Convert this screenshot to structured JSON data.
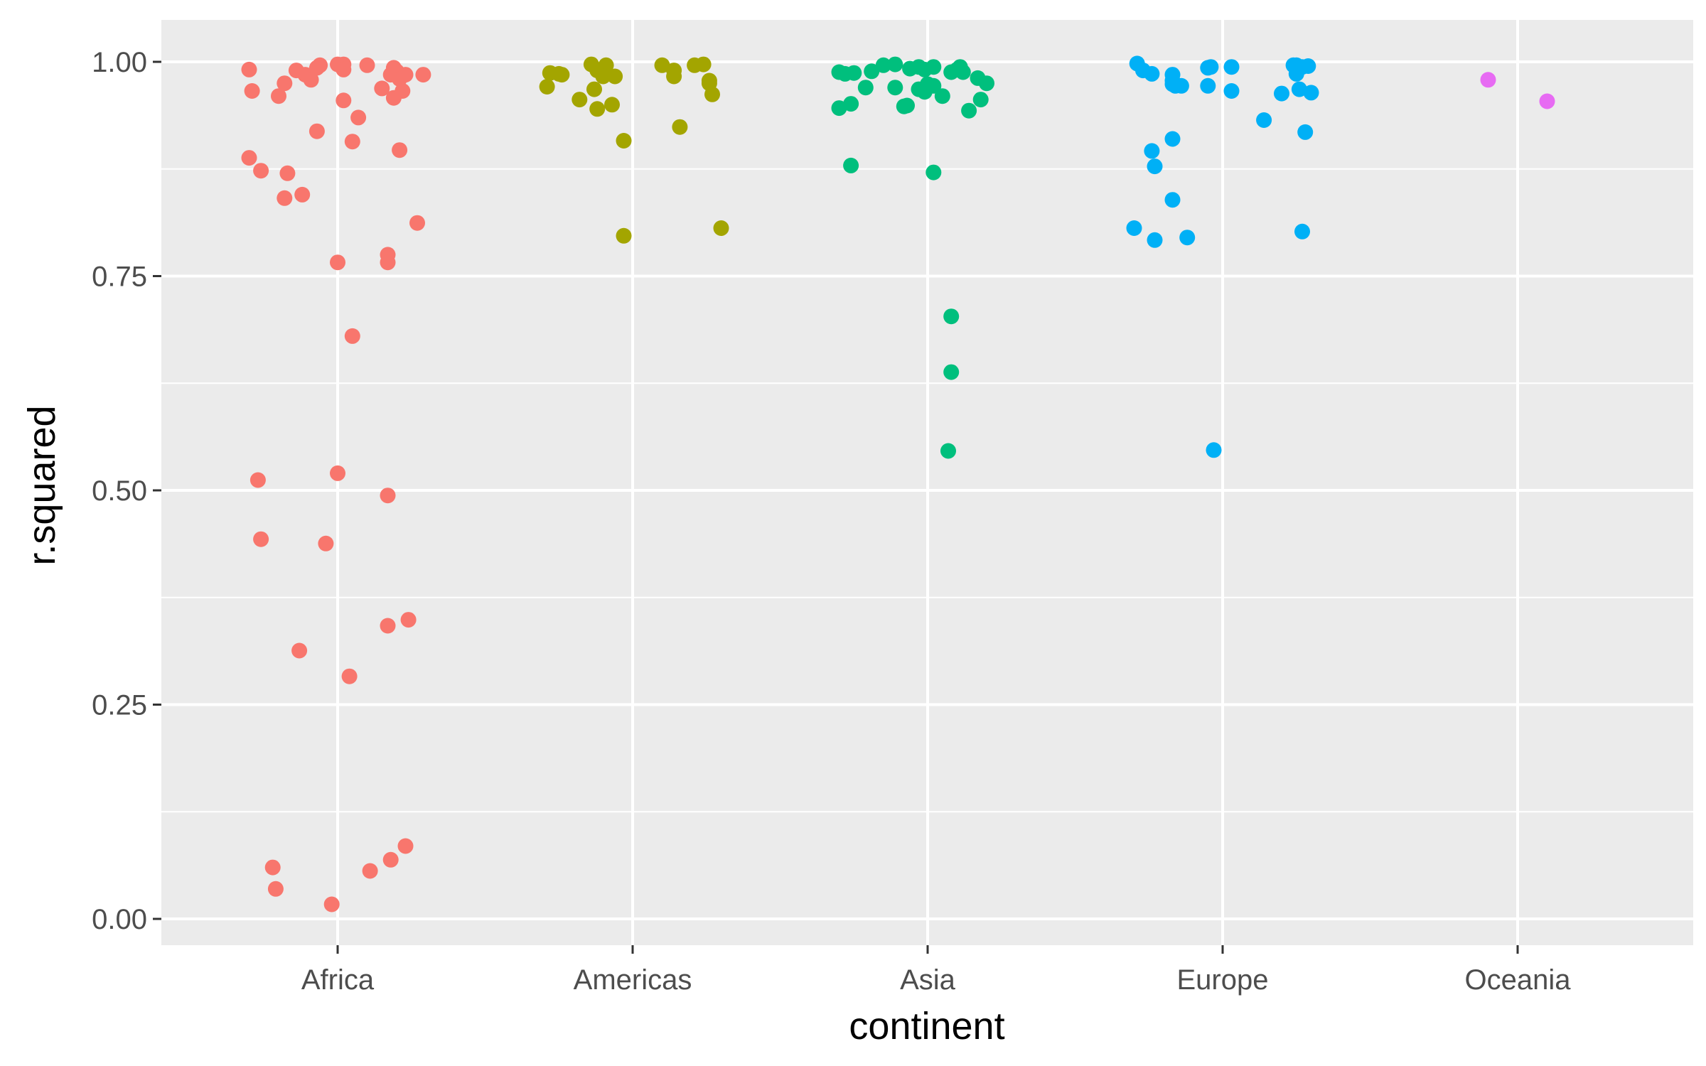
{
  "chart_data": {
    "type": "scatter",
    "xlabel": "continent",
    "ylabel": "r.squared",
    "categories": [
      "Africa",
      "Americas",
      "Asia",
      "Europe",
      "Oceania"
    ],
    "ylim": [
      -0.03,
      1.05
    ],
    "y_ticks": [
      "0.00",
      "0.25",
      "0.50",
      "0.75",
      "1.00"
    ],
    "grid": true,
    "legend": "none",
    "background": "#EBEBEB",
    "series": [
      {
        "category": "Africa",
        "color": "#F8766D",
        "points": [
          [
            -0.3,
            0.991
          ],
          [
            -0.29,
            0.966
          ],
          [
            -0.2,
            0.96
          ],
          [
            -0.18,
            0.975
          ],
          [
            -0.14,
            0.99
          ],
          [
            -0.11,
            0.985
          ],
          [
            -0.09,
            0.979
          ],
          [
            -0.07,
            0.993
          ],
          [
            -0.06,
            0.996
          ],
          [
            0.0,
            0.997
          ],
          [
            0.02,
            0.997
          ],
          [
            0.02,
            0.991
          ],
          [
            0.1,
            0.996
          ],
          [
            0.15,
            0.969
          ],
          [
            0.18,
            0.985
          ],
          [
            0.19,
            0.993
          ],
          [
            0.2,
            0.989
          ],
          [
            0.21,
            0.98
          ],
          [
            0.22,
            0.966
          ],
          [
            0.23,
            0.985
          ],
          [
            0.29,
            0.985
          ],
          [
            0.19,
            0.958
          ],
          [
            0.02,
            0.955
          ],
          [
            0.07,
            0.935
          ],
          [
            -0.07,
            0.919
          ],
          [
            0.05,
            0.907
          ],
          [
            0.21,
            0.897
          ],
          [
            -0.3,
            0.888
          ],
          [
            -0.26,
            0.873
          ],
          [
            -0.17,
            0.87
          ],
          [
            -0.18,
            0.841
          ],
          [
            -0.12,
            0.845
          ],
          [
            0.27,
            0.812
          ],
          [
            0.17,
            0.775
          ],
          [
            0.17,
            0.766
          ],
          [
            0.0,
            0.766
          ],
          [
            0.05,
            0.68
          ],
          [
            -0.27,
            0.512
          ],
          [
            0.0,
            0.52
          ],
          [
            0.17,
            0.494
          ],
          [
            -0.26,
            0.443
          ],
          [
            -0.04,
            0.438
          ],
          [
            0.24,
            0.349
          ],
          [
            0.17,
            0.342
          ],
          [
            -0.13,
            0.313
          ],
          [
            0.04,
            0.283
          ],
          [
            -0.22,
            0.06
          ],
          [
            -0.21,
            0.035
          ],
          [
            0.11,
            0.056
          ],
          [
            0.18,
            0.069
          ],
          [
            0.23,
            0.085
          ],
          [
            -0.02,
            0.017
          ]
        ]
      },
      {
        "category": "Americas",
        "color": "#A3A500",
        "points": [
          [
            -0.28,
            0.987
          ],
          [
            -0.25,
            0.986
          ],
          [
            -0.24,
            0.985
          ],
          [
            -0.29,
            0.971
          ],
          [
            -0.14,
            0.997
          ],
          [
            -0.12,
            0.99
          ],
          [
            -0.09,
            0.996
          ],
          [
            -0.1,
            0.983
          ],
          [
            -0.06,
            0.983
          ],
          [
            -0.13,
            0.968
          ],
          [
            -0.18,
            0.956
          ],
          [
            -0.12,
            0.945
          ],
          [
            -0.07,
            0.95
          ],
          [
            0.1,
            0.996
          ],
          [
            0.14,
            0.99
          ],
          [
            0.14,
            0.983
          ],
          [
            0.21,
            0.996
          ],
          [
            0.24,
            0.997
          ],
          [
            0.26,
            0.978
          ],
          [
            0.26,
            0.975
          ],
          [
            0.27,
            0.962
          ],
          [
            0.16,
            0.924
          ],
          [
            -0.03,
            0.908
          ],
          [
            -0.03,
            0.797
          ],
          [
            0.3,
            0.806
          ]
        ]
      },
      {
        "category": "Asia",
        "color": "#00BF7D",
        "points": [
          [
            -0.3,
            0.988
          ],
          [
            -0.28,
            0.986
          ],
          [
            -0.25,
            0.987
          ],
          [
            -0.19,
            0.989
          ],
          [
            -0.15,
            0.996
          ],
          [
            -0.11,
            0.997
          ],
          [
            -0.06,
            0.992
          ],
          [
            -0.03,
            0.994
          ],
          [
            -0.01,
            0.991
          ],
          [
            0.02,
            0.994
          ],
          [
            0.08,
            0.988
          ],
          [
            0.1,
            0.991
          ],
          [
            0.11,
            0.994
          ],
          [
            0.12,
            0.988
          ],
          [
            -0.21,
            0.97
          ],
          [
            -0.11,
            0.97
          ],
          [
            -0.07,
            0.949
          ],
          [
            -0.08,
            0.948
          ],
          [
            -0.26,
            0.951
          ],
          [
            -0.3,
            0.946
          ],
          [
            -0.03,
            0.968
          ],
          [
            -0.01,
            0.965
          ],
          [
            0.0,
            0.974
          ],
          [
            0.02,
            0.972
          ],
          [
            0.05,
            0.96
          ],
          [
            0.17,
            0.981
          ],
          [
            0.2,
            0.975
          ],
          [
            0.18,
            0.956
          ],
          [
            0.14,
            0.943
          ],
          [
            -0.26,
            0.879
          ],
          [
            0.02,
            0.871
          ],
          [
            0.08,
            0.703
          ],
          [
            0.08,
            0.638
          ],
          [
            0.07,
            0.546
          ]
        ]
      },
      {
        "category": "Europe",
        "color": "#00B0F6",
        "points": [
          [
            -0.29,
            0.998
          ],
          [
            -0.27,
            0.99
          ],
          [
            -0.24,
            0.986
          ],
          [
            -0.17,
            0.985
          ],
          [
            -0.17,
            0.978
          ],
          [
            -0.16,
            0.972
          ],
          [
            -0.14,
            0.972
          ],
          [
            -0.17,
            0.974
          ],
          [
            -0.05,
            0.993
          ],
          [
            -0.04,
            0.994
          ],
          [
            0.03,
            0.994
          ],
          [
            0.03,
            0.966
          ],
          [
            -0.05,
            0.972
          ],
          [
            0.14,
            0.932
          ],
          [
            0.2,
            0.963
          ],
          [
            0.24,
            0.996
          ],
          [
            0.25,
            0.996
          ],
          [
            0.27,
            0.994
          ],
          [
            0.25,
            0.986
          ],
          [
            0.29,
            0.995
          ],
          [
            0.26,
            0.968
          ],
          [
            0.3,
            0.964
          ],
          [
            0.28,
            0.918
          ],
          [
            -0.24,
            0.896
          ],
          [
            -0.17,
            0.91
          ],
          [
            -0.23,
            0.878
          ],
          [
            -0.17,
            0.839
          ],
          [
            -0.3,
            0.806
          ],
          [
            -0.23,
            0.792
          ],
          [
            -0.12,
            0.795
          ],
          [
            0.27,
            0.802
          ],
          [
            -0.03,
            0.547
          ]
        ]
      },
      {
        "category": "Oceania",
        "color": "#E76BF3",
        "points": [
          [
            -0.1,
            0.979
          ],
          [
            0.1,
            0.954
          ]
        ]
      }
    ]
  }
}
